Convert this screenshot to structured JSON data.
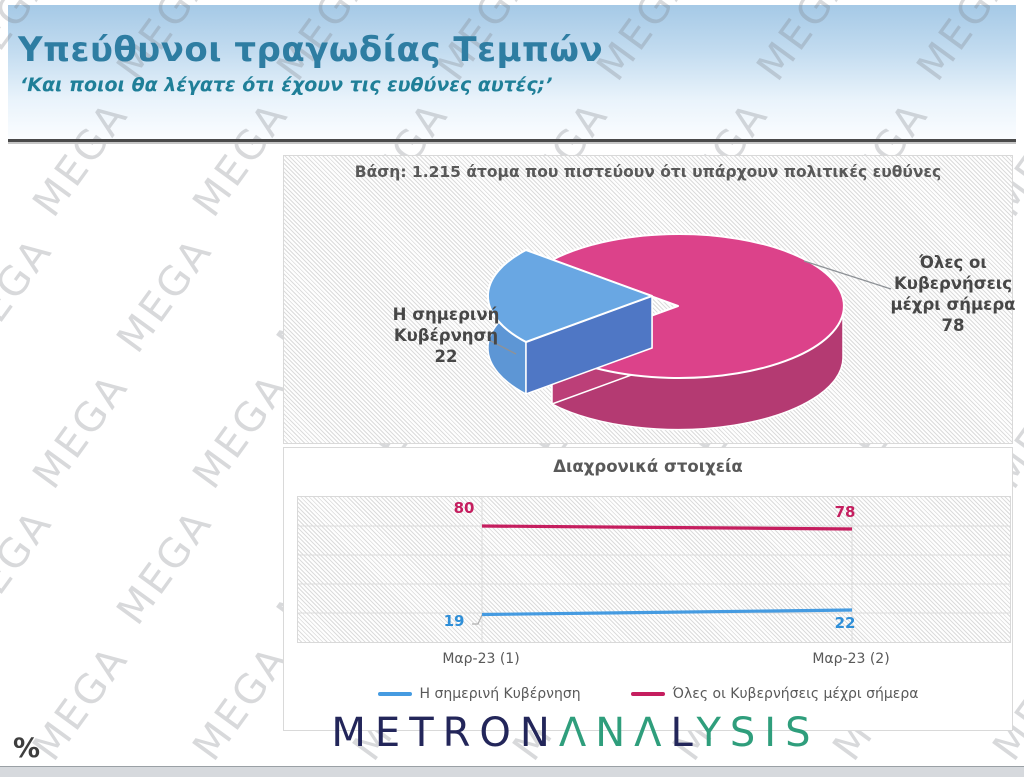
{
  "header": {
    "title": "Υπεύθυνοι τραγωδίας Τεμπών",
    "subtitle": "‘Και ποιοι θα λέγατε ότι έχουν τις ευθύνες αυτές;’"
  },
  "watermark": {
    "text": "MEGA"
  },
  "pie_panel": {
    "labels": {
      "government": {
        "line1": "Η σημερινή",
        "line2": "Κυβέρνηση"
      },
      "all_governments": {
        "line1": "Όλες οι",
        "line2": "Κυβερνήσεις",
        "line3": "μέχρι σήμερα"
      }
    }
  },
  "footer": {
    "percent_symbol": "%",
    "logo": {
      "part1": "METRON",
      "part2": "ΛNΛ",
      "part3": "L",
      "part4": "YSIS"
    }
  },
  "colors": {
    "title_teal": "#2e7da2",
    "pie_blue_top": "#69a7e3",
    "pie_pink_top": "#dc428a",
    "line_blue": "#459be1",
    "line_pink": "#c51e5f",
    "logo_navy": "#23265a",
    "logo_green": "#2f9e7c"
  },
  "chart_data": [
    {
      "type": "pie",
      "style": "3d-exploded",
      "title": "Βάση: 1.215 άτομα που πιστεύουν ότι υπάρχουν πολιτικές ευθύνες",
      "labels": [
        "Η σημερινή Κυβέρνηση",
        "Όλες οι Κυβερνήσεις μέχρι σήμερα"
      ],
      "values": [
        22,
        78
      ],
      "colors": [
        "#69a7e3",
        "#dc428a"
      ]
    },
    {
      "type": "line",
      "title": "Διαχρονικά στοιχεία",
      "categories": [
        "Μαρ-23 (1)",
        "Μαρ-23 (2)"
      ],
      "series": [
        {
          "name": "Η σημερινή Κυβέρνηση",
          "color": "#459be1",
          "values": [
            19,
            22
          ]
        },
        {
          "name": "Όλες οι Κυβερνήσεις μέχρι σήμερα",
          "color": "#c51e5f",
          "values": [
            80,
            78
          ]
        }
      ],
      "ylim": [
        0,
        100
      ],
      "grid": "horizontal majors every 20 + verticals at categories",
      "legend_position": "bottom"
    }
  ]
}
